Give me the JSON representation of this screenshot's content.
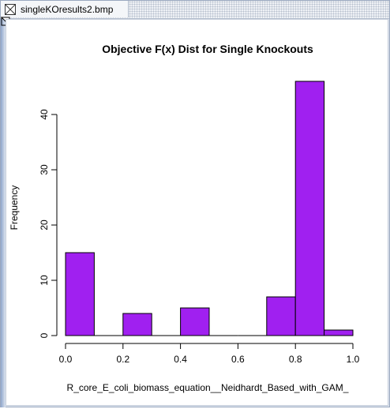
{
  "window": {
    "tab_title": "singleKOresults2.bmp",
    "tab_icon": "image-file-icon"
  },
  "colors": {
    "bar_fill": "#a020f0",
    "bar_stroke": "#000000"
  },
  "chart_data": {
    "type": "bar",
    "title": "Objective F(x) Dist for Single Knockouts",
    "xlabel": "R_core_E_coli_biomass_equation__Neidhardt_Based_with_GAM_",
    "ylabel": "Frequency",
    "bin_edges": [
      0.0,
      0.1,
      0.2,
      0.3,
      0.4,
      0.5,
      0.6,
      0.7,
      0.8,
      0.9,
      1.0
    ],
    "values": [
      15,
      0,
      4,
      0,
      5,
      0,
      0,
      7,
      46,
      1
    ],
    "xlim": [
      0,
      1.0
    ],
    "ylim": [
      0,
      46
    ],
    "x_ticks": [
      "0.0",
      "0.2",
      "0.4",
      "0.6",
      "0.8",
      "1.0"
    ],
    "x_tick_values": [
      0,
      0.2,
      0.4,
      0.6,
      0.8,
      1.0
    ],
    "y_ticks": [
      "0",
      "10",
      "20",
      "30",
      "40"
    ],
    "y_tick_values": [
      0,
      10,
      20,
      30,
      40
    ],
    "grid": false,
    "legend": "none"
  }
}
